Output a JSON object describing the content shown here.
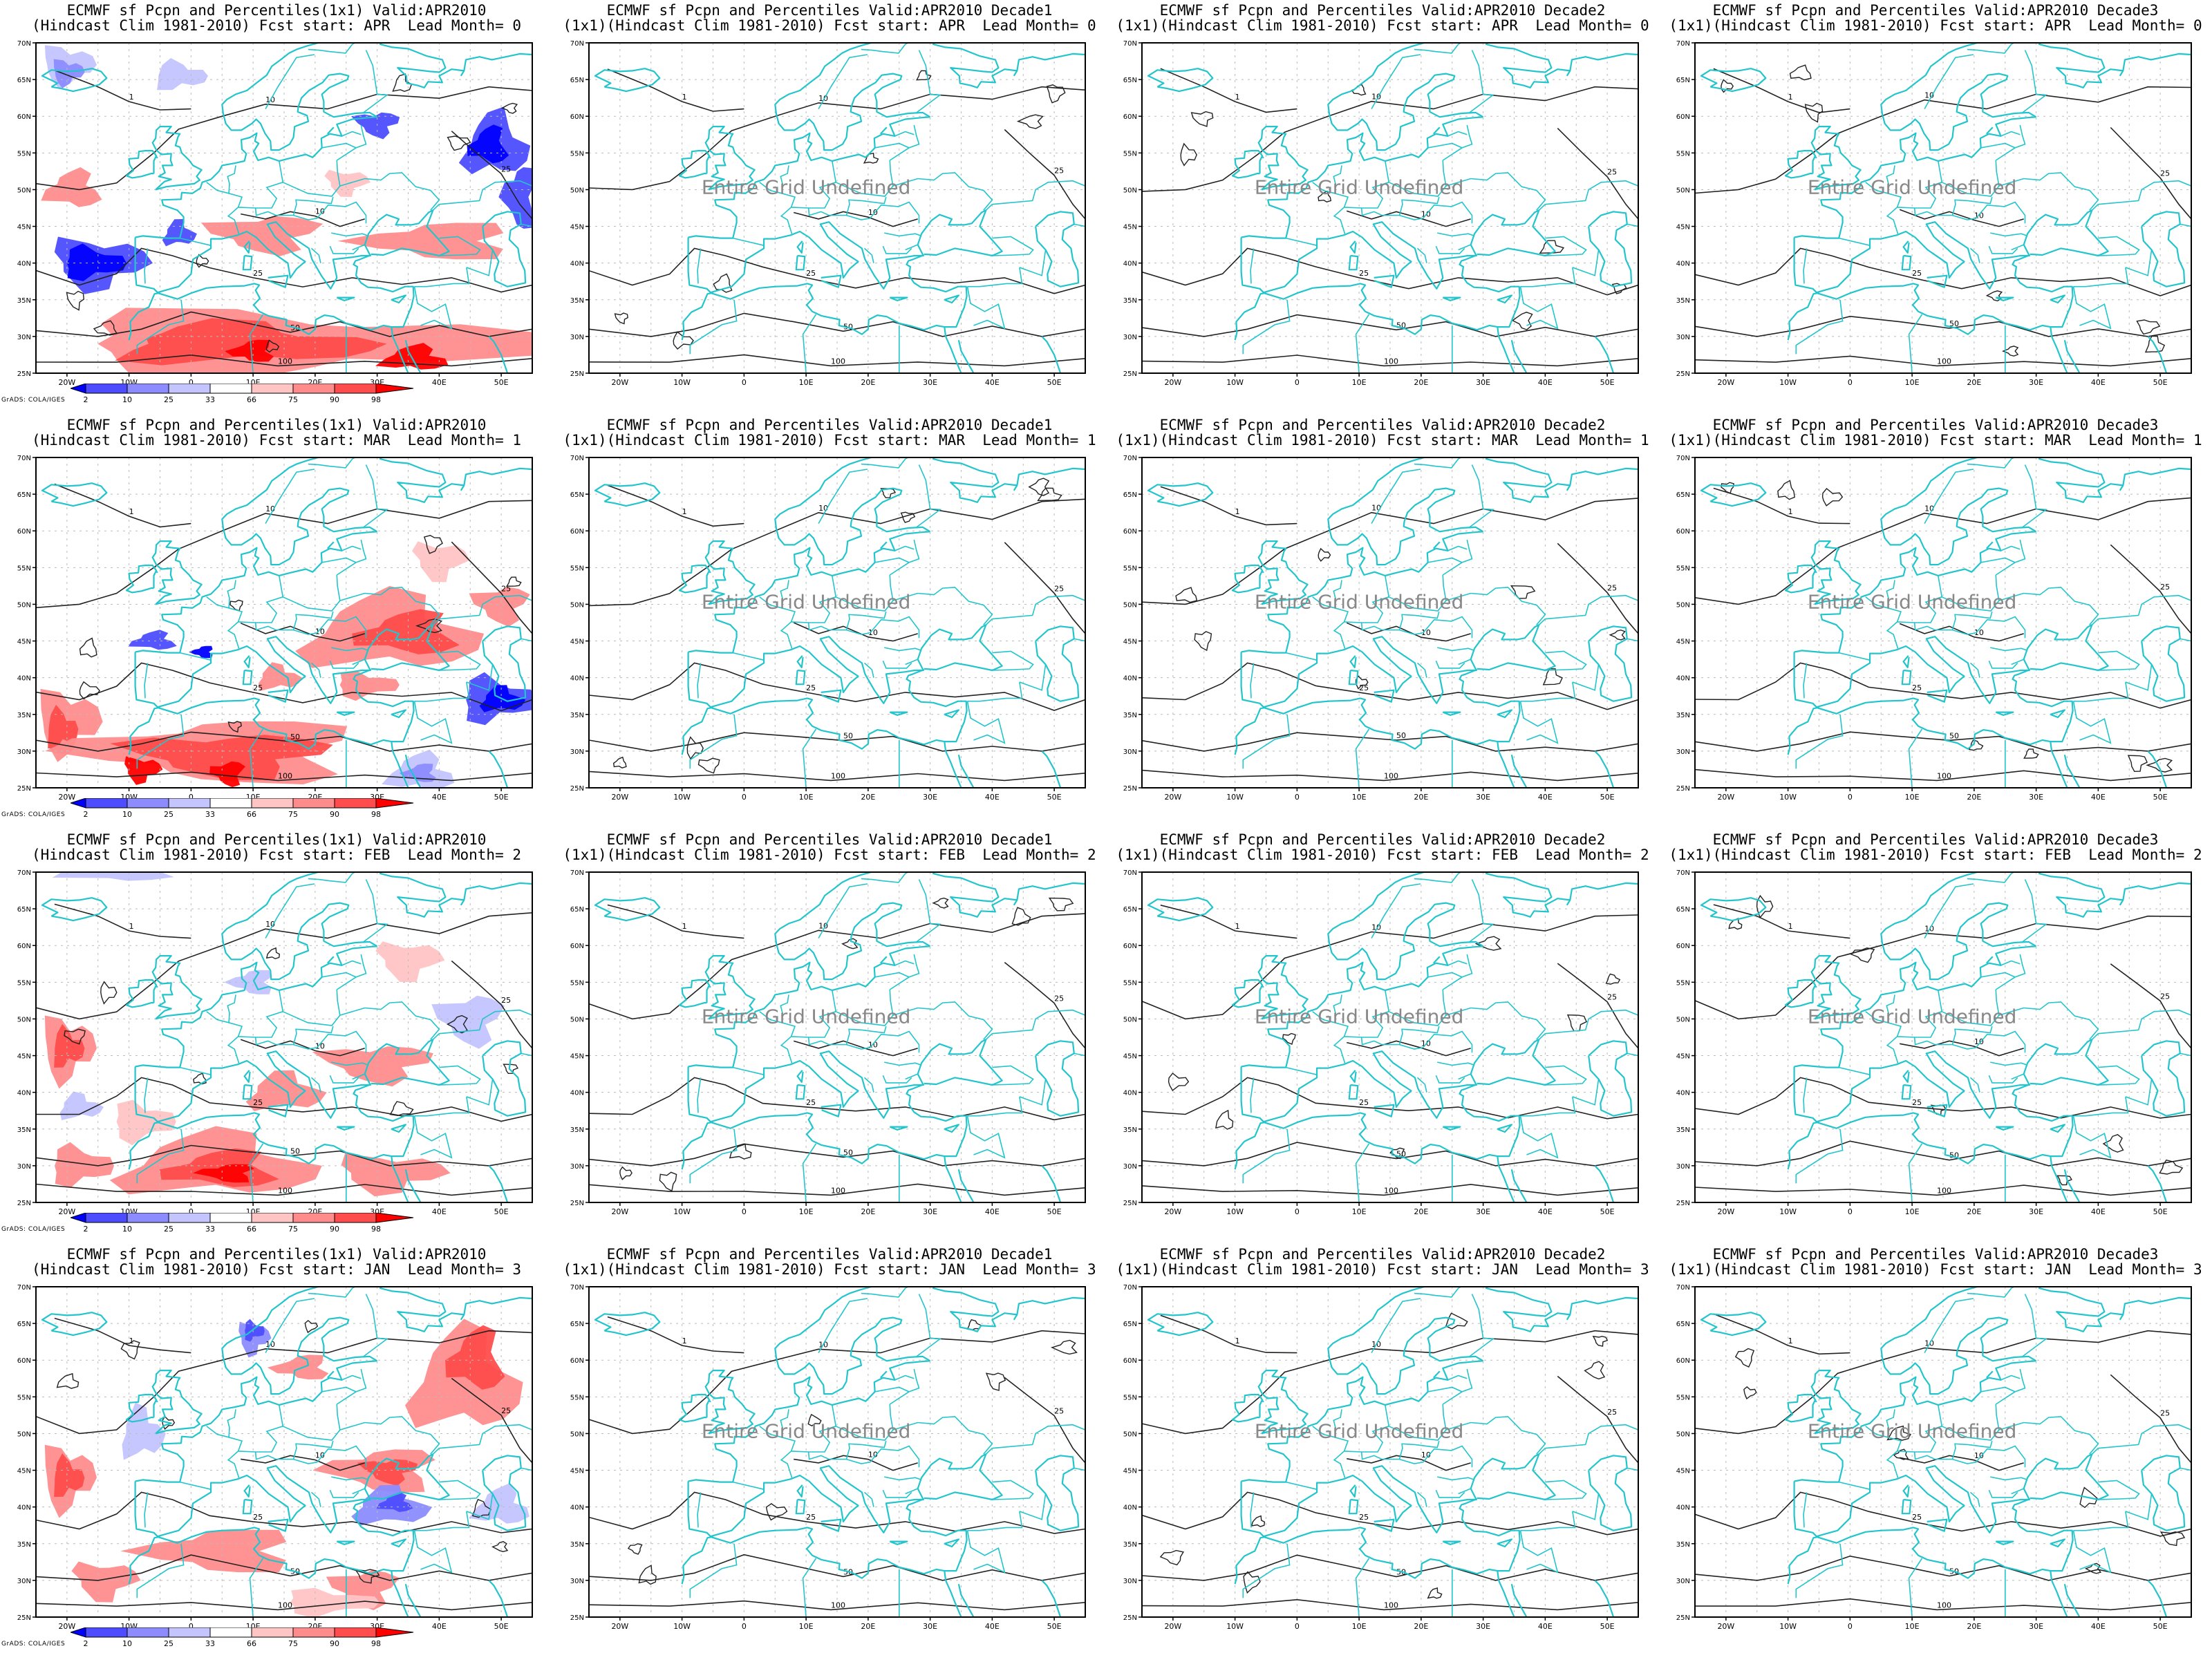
{
  "figure": {
    "panels": [
      {
        "row": 0,
        "col": 0,
        "title1": "ECMWF sf Pcpn and Percentiles(1x1) Valid:APR2010",
        "title2": "(Hindcast Clim 1981-2010) Fcst start: APR  Lead Month= 0",
        "undefined_text": "",
        "shaded": true
      },
      {
        "row": 0,
        "col": 1,
        "title1": "ECMWF sf Pcpn and Percentiles Valid:APR2010 Decade1",
        "title2": "(1x1)(Hindcast Clim 1981-2010) Fcst start: APR  Lead Month= 0",
        "undefined_text": "Entire Grid Undefined",
        "shaded": false
      },
      {
        "row": 0,
        "col": 2,
        "title1": "ECMWF sf Pcpn and Percentiles Valid:APR2010 Decade2",
        "title2": "(1x1)(Hindcast Clim 1981-2010) Fcst start: APR  Lead Month= 0",
        "undefined_text": "Entire Grid Undefined",
        "shaded": false
      },
      {
        "row": 0,
        "col": 3,
        "title1": "ECMWF sf Pcpn and Percentiles Valid:APR2010 Decade3",
        "title2": "(1x1)(Hindcast Clim 1981-2010) Fcst start: APR  Lead Month= 0",
        "undefined_text": "Entire Grid Undefined",
        "shaded": false
      },
      {
        "row": 1,
        "col": 0,
        "title1": "ECMWF sf Pcpn and Percentiles(1x1) Valid:APR2010",
        "title2": "(Hindcast Clim 1981-2010) Fcst start: MAR  Lead Month= 1",
        "undefined_text": "",
        "shaded": true
      },
      {
        "row": 1,
        "col": 1,
        "title1": "ECMWF sf Pcpn and Percentiles Valid:APR2010 Decade1",
        "title2": "(1x1)(Hindcast Clim 1981-2010) Fcst start: MAR  Lead Month= 1",
        "undefined_text": "Entire Grid Undefined",
        "shaded": false
      },
      {
        "row": 1,
        "col": 2,
        "title1": "ECMWF sf Pcpn and Percentiles Valid:APR2010 Decade2",
        "title2": "(1x1)(Hindcast Clim 1981-2010) Fcst start: MAR  Lead Month= 1",
        "undefined_text": "Entire Grid Undefined",
        "shaded": false
      },
      {
        "row": 1,
        "col": 3,
        "title1": "ECMWF sf Pcpn and Percentiles Valid:APR2010 Decade3",
        "title2": "(1x1)(Hindcast Clim 1981-2010) Fcst start: MAR  Lead Month= 1",
        "undefined_text": "Entire Grid Undefined",
        "shaded": false
      },
      {
        "row": 2,
        "col": 0,
        "title1": "ECMWF sf Pcpn and Percentiles(1x1) Valid:APR2010",
        "title2": "(Hindcast Clim 1981-2010) Fcst start: FEB  Lead Month= 2",
        "undefined_text": "",
        "shaded": true
      },
      {
        "row": 2,
        "col": 1,
        "title1": "ECMWF sf Pcpn and Percentiles Valid:APR2010 Decade1",
        "title2": "(1x1)(Hindcast Clim 1981-2010) Fcst start: FEB  Lead Month= 2",
        "undefined_text": "Entire Grid Undefined",
        "shaded": false
      },
      {
        "row": 2,
        "col": 2,
        "title1": "ECMWF sf Pcpn and Percentiles Valid:APR2010 Decade2",
        "title2": "(1x1)(Hindcast Clim 1981-2010) Fcst start: FEB  Lead Month= 2",
        "undefined_text": "Entire Grid Undefined",
        "shaded": false
      },
      {
        "row": 2,
        "col": 3,
        "title1": "ECMWF sf Pcpn and Percentiles Valid:APR2010 Decade3",
        "title2": "(1x1)(Hindcast Clim 1981-2010) Fcst start: FEB  Lead Month= 2",
        "undefined_text": "Entire Grid Undefined",
        "shaded": false
      },
      {
        "row": 3,
        "col": 0,
        "title1": "ECMWF sf Pcpn and Percentiles(1x1) Valid:APR2010",
        "title2": "(Hindcast Clim 1981-2010) Fcst start: JAN  Lead Month= 3",
        "undefined_text": "",
        "shaded": true
      },
      {
        "row": 3,
        "col": 1,
        "title1": "ECMWF sf Pcpn and Percentiles Valid:APR2010 Decade1",
        "title2": "(1x1)(Hindcast Clim 1981-2010) Fcst start: JAN  Lead Month= 3",
        "undefined_text": "Entire Grid Undefined",
        "shaded": false
      },
      {
        "row": 3,
        "col": 2,
        "title1": "ECMWF sf Pcpn and Percentiles Valid:APR2010 Decade2",
        "title2": "(1x1)(Hindcast Clim 1981-2010) Fcst start: JAN  Lead Month= 3",
        "undefined_text": "Entire Grid Undefined",
        "shaded": false
      },
      {
        "row": 3,
        "col": 3,
        "title1": "ECMWF sf Pcpn and Percentiles Valid:APR2010 Decade3",
        "title2": "(1x1)(Hindcast Clim 1981-2010) Fcst start: JAN  Lead Month= 3",
        "undefined_text": "Entire Grid Undefined",
        "shaded": false
      }
    ],
    "lon_ticks": [
      "20W",
      "10W",
      "0",
      "10E",
      "20E",
      "30E",
      "40E",
      "50E"
    ],
    "lat_ticks": [
      "70N",
      "65N",
      "60N",
      "55N",
      "50N",
      "45N",
      "40N",
      "35N",
      "30N",
      "25N"
    ],
    "colorbar_labels": [
      "2",
      "10",
      "25",
      "33",
      "66",
      "75",
      "90",
      "98"
    ],
    "colorbar_colors": [
      "#0000ff",
      "#4d4dff",
      "#8c8cff",
      "#c4c4ff",
      "#ffffff",
      "#ffc4c4",
      "#ff8c8c",
      "#ff4d4d",
      "#ff0000"
    ],
    "credit": "GrADS: COLA/IGES",
    "colors": {
      "coast": "#22c5cc",
      "contour": "#222222",
      "grid": "#bbbbbb",
      "undefined_text": "#888888"
    }
  }
}
